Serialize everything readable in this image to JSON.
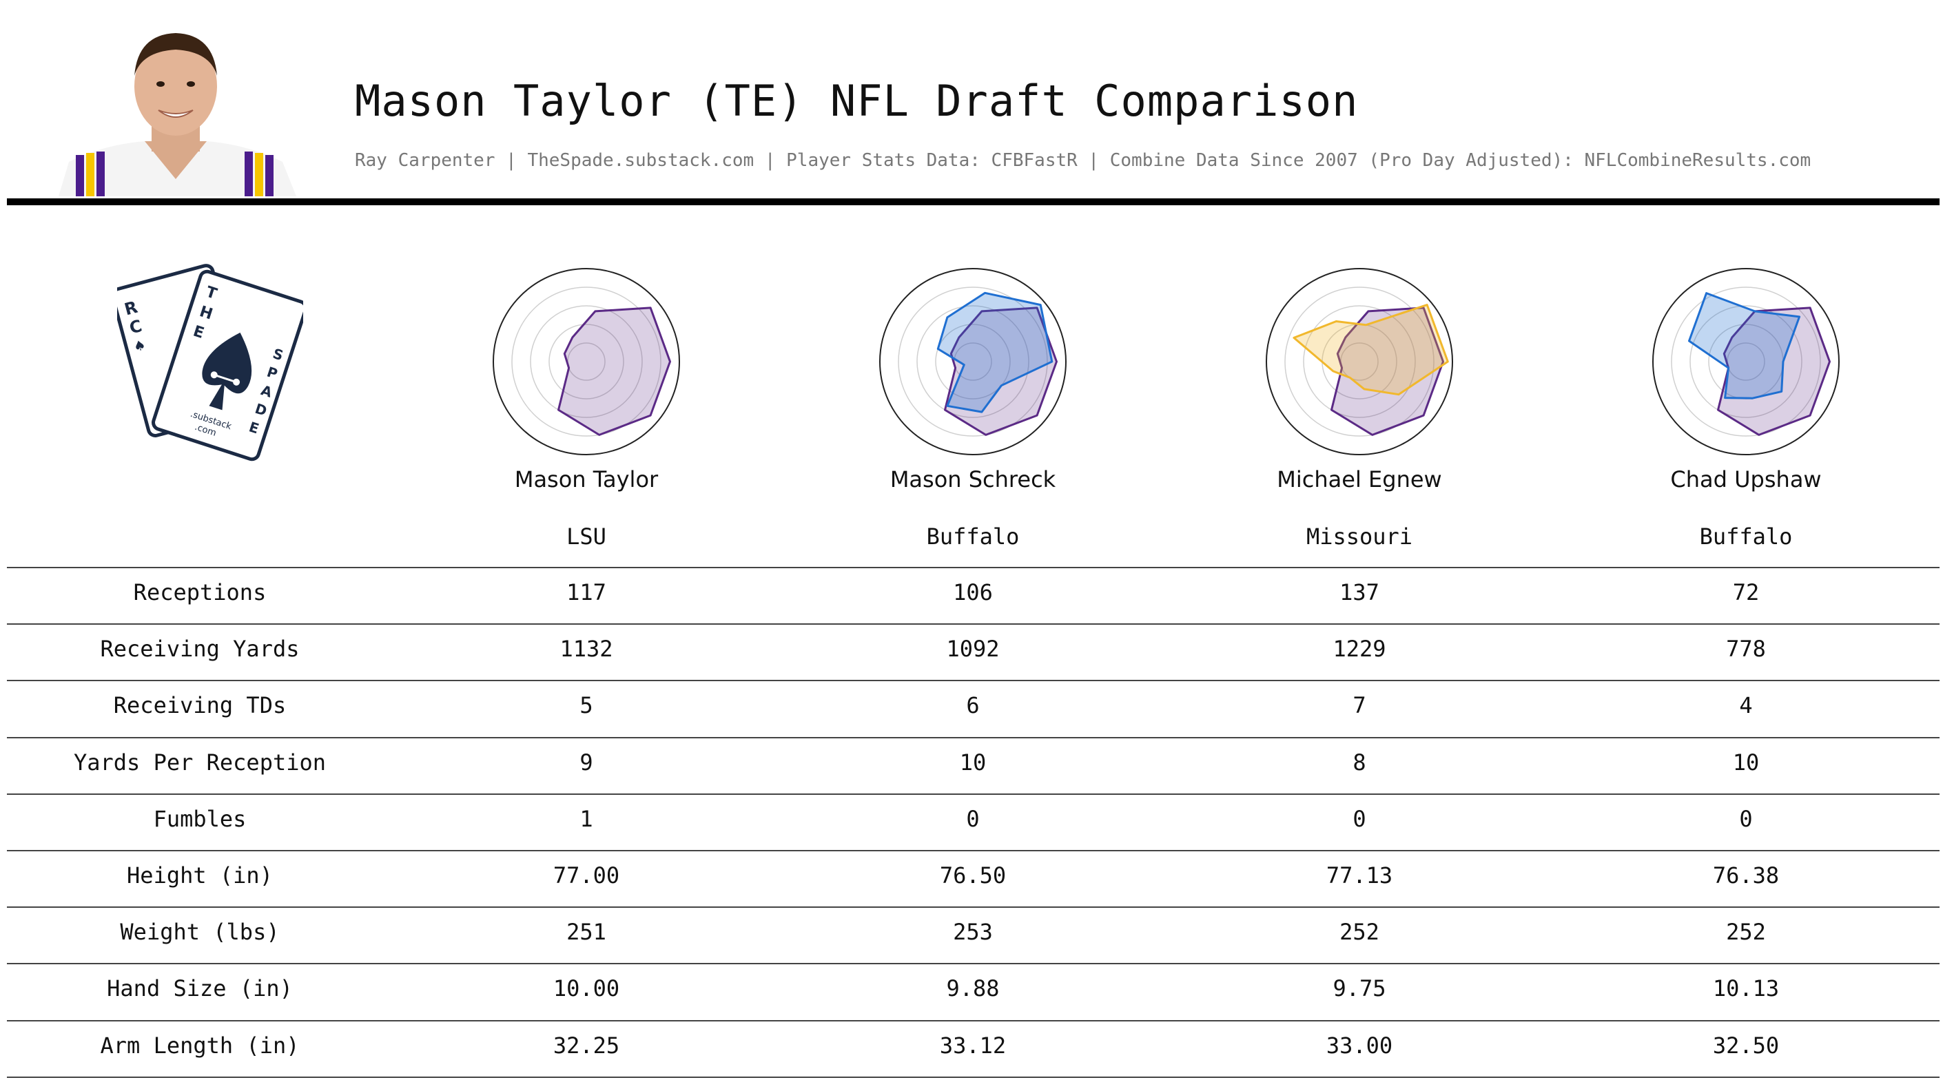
{
  "title": "Mason Taylor (TE) NFL Draft Comparison",
  "subtitle": "Ray Carpenter | TheSpade.substack.com | Player Stats Data: CFBFastR | Combine Data Since 2007 (Pro Day Adjusted): NFLCombineResults.com",
  "logo": {
    "text": "THE SPADE",
    "sub": ".substack .com",
    "card_back_text": "RC"
  },
  "players": [
    {
      "name": "Mason Taylor",
      "school": "LSU"
    },
    {
      "name": "Mason Schreck",
      "school": "Buffalo"
    },
    {
      "name": "Michael Egnew",
      "school": "Missouri"
    },
    {
      "name": "Chad Upshaw",
      "school": "Buffalo"
    }
  ],
  "colors": {
    "taylor": "#5b2a86",
    "schreck": "#1f6fd1",
    "egnew": "#f1b82d",
    "upshaw": "#1f6fd1"
  },
  "table": {
    "rows": [
      {
        "label": "Receptions",
        "values": [
          "117",
          "106",
          "137",
          "72"
        ]
      },
      {
        "label": "Receiving Yards",
        "values": [
          "1132",
          "1092",
          "1229",
          "778"
        ]
      },
      {
        "label": "Receiving TDs",
        "values": [
          "5",
          "6",
          "7",
          "4"
        ]
      },
      {
        "label": "Yards Per Reception",
        "values": [
          "9",
          "10",
          "8",
          "10"
        ]
      },
      {
        "label": "Fumbles",
        "values": [
          "1",
          "0",
          "0",
          "0"
        ]
      },
      {
        "label": "Height (in)",
        "values": [
          "77.00",
          "76.50",
          "77.13",
          "76.38"
        ]
      },
      {
        "label": "Weight (lbs)",
        "values": [
          "251",
          "253",
          "252",
          "252"
        ]
      },
      {
        "label": "Hand Size (in)",
        "values": [
          "10.00",
          "9.88",
          "9.75",
          "10.13"
        ]
      },
      {
        "label": "Arm Length (in)",
        "values": [
          "32.25",
          "33.12",
          "33.00",
          "32.50"
        ]
      }
    ]
  },
  "chart_data": [
    {
      "type": "radar",
      "title": "Mason Taylor",
      "series": [
        {
          "color": "#5b2a86",
          "values": [
            0.9,
            0.9,
            0.55,
            0.3,
            0.25,
            0.2,
            0.6,
            0.8,
            0.9
          ]
        }
      ]
    },
    {
      "type": "radar",
      "title": "Mason Schreck",
      "series": [
        {
          "color": "#5b2a86",
          "values": [
            0.9,
            0.9,
            0.55,
            0.3,
            0.25,
            0.2,
            0.6,
            0.8,
            0.9
          ]
        },
        {
          "color": "#1f6fd1",
          "values": [
            0.85,
            0.95,
            0.75,
            0.55,
            0.4,
            0.1,
            0.55,
            0.55,
            0.4
          ]
        }
      ]
    },
    {
      "type": "radar",
      "title": "Michael Egnew",
      "series": [
        {
          "color": "#5b2a86",
          "values": [
            0.9,
            0.9,
            0.55,
            0.3,
            0.25,
            0.2,
            0.6,
            0.8,
            0.9
          ]
        },
        {
          "color": "#f1b82d",
          "values": [
            0.95,
            0.95,
            0.4,
            0.5,
            0.75,
            0.3,
            0.2,
            0.3,
            0.55
          ]
        }
      ]
    },
    {
      "type": "radar",
      "title": "Chad Upshaw",
      "series": [
        {
          "color": "#5b2a86",
          "values": [
            0.9,
            0.9,
            0.55,
            0.3,
            0.25,
            0.2,
            0.6,
            0.8,
            0.9
          ]
        },
        {
          "color": "#1f6fd1",
          "values": [
            0.4,
            0.75,
            0.55,
            0.85,
            0.65,
            0.2,
            0.45,
            0.4,
            0.5
          ]
        }
      ]
    }
  ]
}
